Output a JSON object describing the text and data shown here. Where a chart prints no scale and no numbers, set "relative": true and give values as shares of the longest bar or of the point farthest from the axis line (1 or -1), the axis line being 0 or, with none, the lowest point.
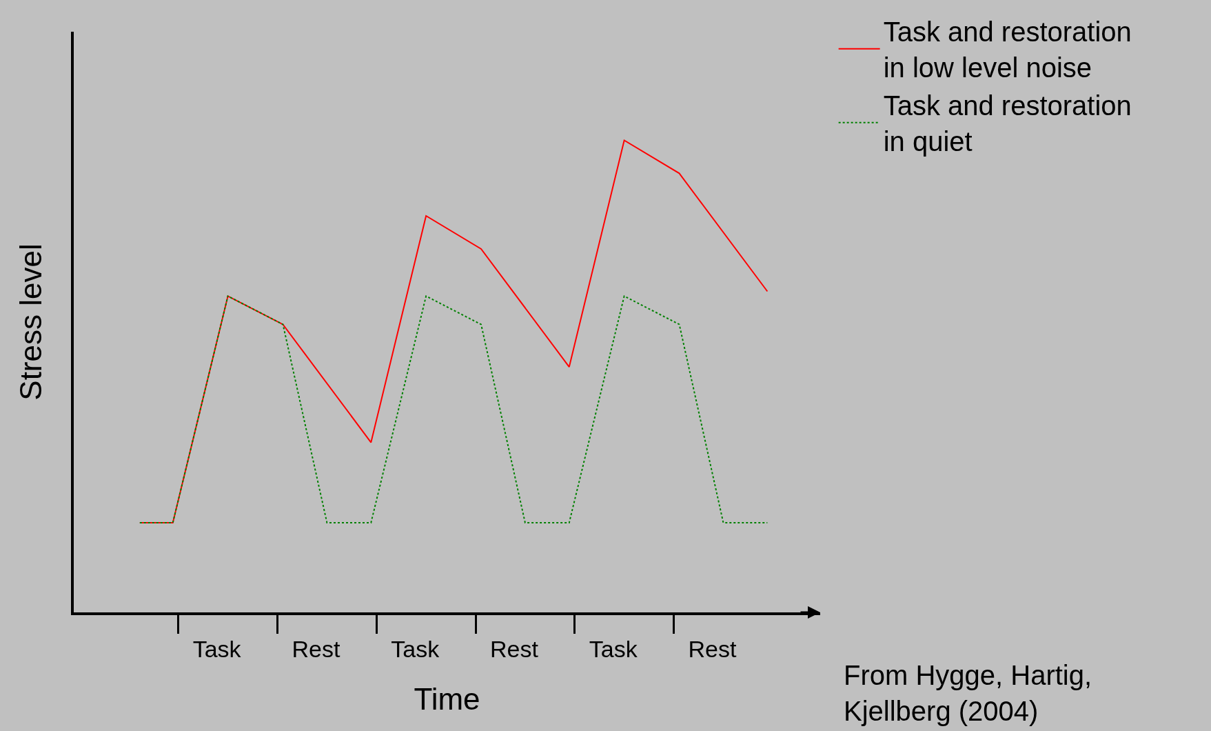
{
  "chart_data": {
    "type": "line",
    "relative": true,
    "xlabel": "Time",
    "ylabel": "Stress level",
    "categories": [
      null,
      null,
      null,
      null,
      null,
      null,
      null,
      "Task",
      null,
      null,
      null,
      null,
      null,
      null,
      null,
      null,
      "Rest",
      null,
      null,
      null,
      null,
      null,
      null,
      null,
      null,
      "Task",
      null,
      null,
      null,
      null,
      null,
      null,
      null,
      null,
      "Rest",
      null,
      null,
      null,
      null,
      null,
      null,
      null,
      null,
      "Task",
      null,
      null,
      null,
      null,
      null,
      null,
      null,
      null,
      "Rest",
      null,
      null,
      null,
      null,
      null
    ],
    "grid": false,
    "legend": "top right",
    "marker": "none",
    "series": [
      {
        "name": "Task and restoration in low level noise",
        "color": "#ff0000",
        "line_style": "solid",
        "values": [
          0.19,
          null,
          null,
          0.19,
          null,
          null,
          null,
          null,
          0.67,
          null,
          null,
          null,
          null,
          0.61,
          null,
          null,
          null,
          null,
          null,
          null,
          null,
          0.36,
          null,
          null,
          null,
          null,
          0.84,
          null,
          null,
          null,
          null,
          0.77,
          null,
          null,
          null,
          null,
          null,
          null,
          null,
          0.52,
          null,
          null,
          null,
          null,
          1,
          null,
          null,
          null,
          null,
          0.93,
          null,
          null,
          null,
          null,
          null,
          null,
          null,
          0.68
        ]
      },
      {
        "name": "Task and restoration in quiet",
        "color": "#008000",
        "line_style": "dotted",
        "values": [
          0.19,
          null,
          null,
          0.19,
          null,
          null,
          null,
          null,
          0.67,
          null,
          null,
          null,
          null,
          0.61,
          null,
          null,
          null,
          0.19,
          null,
          null,
          null,
          0.19,
          null,
          null,
          null,
          null,
          0.67,
          null,
          null,
          null,
          null,
          0.61,
          null,
          null,
          null,
          0.19,
          null,
          null,
          null,
          0.19,
          null,
          null,
          null,
          null,
          0.67,
          null,
          null,
          null,
          null,
          0.61,
          null,
          null,
          null,
          0.19,
          null,
          null,
          null,
          0.19
        ]
      }
    ],
    "annotations": [
      "From Hygge, Hartig, Kjellberg (2004)"
    ]
  }
}
